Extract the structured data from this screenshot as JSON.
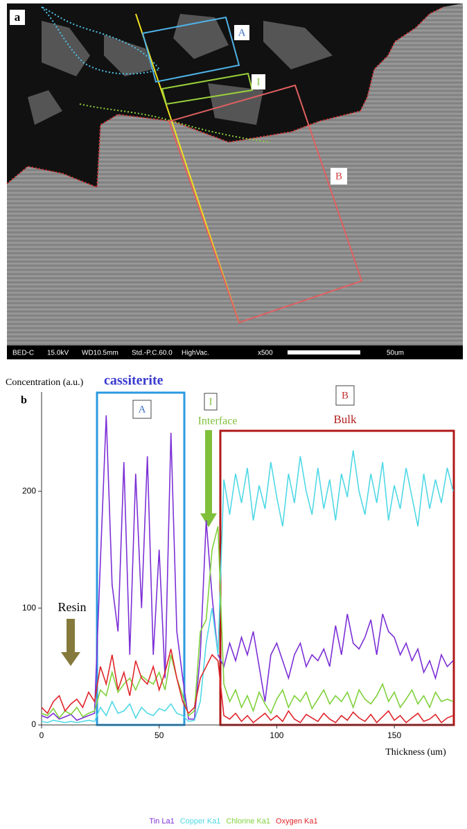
{
  "figure_a": {
    "label": "a",
    "region_labels": [
      "A",
      "I",
      "B"
    ],
    "status_bar": [
      "BED-C",
      "15.0kV",
      "WD10.5mm",
      "Std.-P.C.60.0",
      "HighVac.",
      "x500",
      "50um"
    ]
  },
  "chart_data": {
    "type": "line",
    "panel_label": "b",
    "ylabel": "Concentration (a.u.)",
    "xlabel": "Thickness (um)",
    "annotations": [
      "cassiterite",
      "A",
      "I",
      "Interface",
      "B",
      "Bulk",
      "Resin"
    ],
    "xlim": [
      0,
      175
    ],
    "ylim": [
      0,
      285
    ],
    "xticks": [
      0,
      50,
      100,
      150
    ],
    "yticks": [
      0,
      100,
      200
    ],
    "x": [
      0,
      2.5,
      5,
      7.5,
      10,
      12.5,
      15,
      17.5,
      20,
      22.5,
      25,
      27.5,
      30,
      32.5,
      35,
      37.5,
      40,
      42.5,
      45,
      47.5,
      50,
      52.5,
      55,
      57.5,
      60,
      62.5,
      65,
      67.5,
      70,
      72.5,
      75,
      77.5,
      80,
      82.5,
      85,
      87.5,
      90,
      92.5,
      95,
      97.5,
      100,
      102.5,
      105,
      107.5,
      110,
      112.5,
      115,
      117.5,
      120,
      122.5,
      125,
      127.5,
      130,
      132.5,
      135,
      137.5,
      140,
      142.5,
      145,
      147.5,
      150,
      152.5,
      155,
      157.5,
      160,
      162.5,
      165,
      167.5,
      170,
      172.5,
      175
    ],
    "series": [
      {
        "name": "Tin La1",
        "color": "#7b2fd6",
        "values": [
          8,
          6,
          10,
          5,
          7,
          9,
          4,
          6,
          8,
          10,
          140,
          265,
          120,
          80,
          225,
          60,
          215,
          100,
          230,
          60,
          150,
          40,
          250,
          80,
          40,
          5,
          5,
          60,
          175,
          110,
          60,
          50,
          70,
          55,
          75,
          60,
          80,
          50,
          20,
          60,
          70,
          55,
          40,
          60,
          70,
          50,
          60,
          55,
          65,
          50,
          85,
          60,
          95,
          70,
          65,
          75,
          90,
          60,
          95,
          80,
          75,
          60,
          70,
          55,
          65,
          45,
          55,
          40,
          60,
          50,
          55
        ]
      },
      {
        "name": "Copper Ka1",
        "color": "#4fd8e6",
        "values": [
          3,
          2,
          4,
          3,
          2,
          3,
          2,
          3,
          4,
          3,
          15,
          8,
          20,
          10,
          12,
          18,
          6,
          15,
          10,
          8,
          14,
          12,
          18,
          10,
          8,
          3,
          4,
          20,
          70,
          100,
          60,
          210,
          180,
          215,
          190,
          220,
          175,
          205,
          185,
          225,
          195,
          170,
          215,
          190,
          230,
          200,
          180,
          220,
          185,
          210,
          175,
          215,
          195,
          235,
          200,
          180,
          215,
          190,
          225,
          175,
          205,
          185,
          220,
          195,
          170,
          215,
          185,
          210,
          190,
          220,
          200
        ]
      },
      {
        "name": "Chlorine Ka1",
        "color": "#7fd13b",
        "values": [
          10,
          8,
          14,
          6,
          12,
          9,
          15,
          7,
          10,
          12,
          30,
          25,
          45,
          28,
          35,
          40,
          30,
          42,
          38,
          35,
          45,
          30,
          60,
          40,
          25,
          8,
          12,
          80,
          90,
          150,
          170,
          35,
          20,
          30,
          15,
          25,
          12,
          28,
          18,
          10,
          22,
          30,
          15,
          25,
          20,
          28,
          14,
          22,
          30,
          18,
          25,
          20,
          28,
          15,
          30,
          22,
          18,
          25,
          35,
          20,
          28,
          15,
          22,
          30,
          18,
          25,
          15,
          28,
          20,
          22,
          20
        ]
      },
      {
        "name": "Oxygen Ka1",
        "color": "#e0242a",
        "values": [
          15,
          10,
          20,
          25,
          12,
          18,
          22,
          15,
          28,
          20,
          50,
          35,
          60,
          30,
          45,
          25,
          55,
          40,
          35,
          50,
          30,
          45,
          65,
          40,
          20,
          10,
          15,
          40,
          50,
          60,
          55,
          8,
          5,
          10,
          3,
          8,
          2,
          6,
          10,
          4,
          8,
          3,
          12,
          5,
          2,
          9,
          6,
          3,
          10,
          5,
          2,
          8,
          4,
          11,
          6,
          3,
          9,
          2,
          7,
          12,
          4,
          8,
          2,
          6,
          10,
          3,
          5,
          9,
          2,
          6,
          8
        ]
      }
    ]
  }
}
